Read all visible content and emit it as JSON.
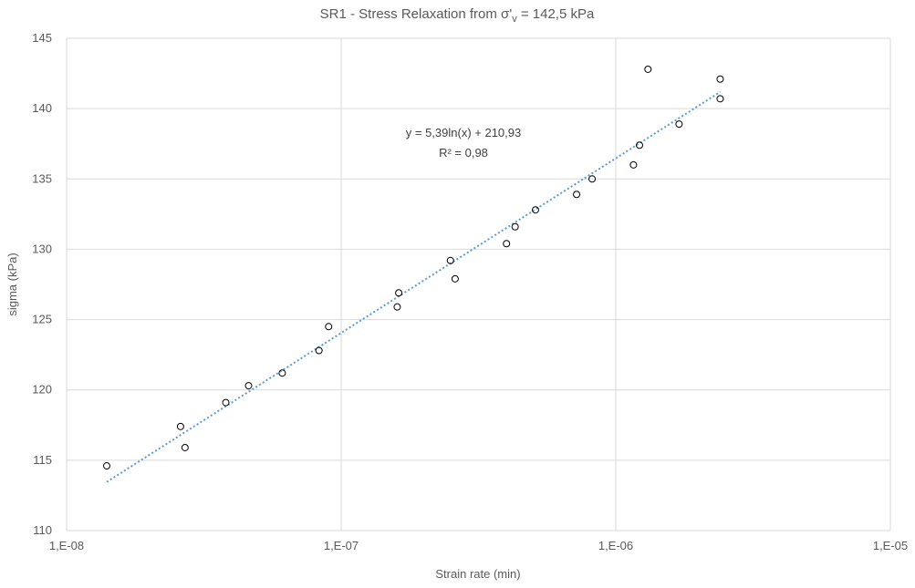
{
  "chart_data": {
    "type": "scatter",
    "title": "SR1 - Stress Relaxation from σ'",
    "title_sub": "v",
    "title_tail": " = 142,5 kPa",
    "xlabel": "Strain rate (min)",
    "ylabel": "sigma (kPa)",
    "x_scale": "log",
    "xlim": [
      1e-08,
      1e-05
    ],
    "ylim": [
      110,
      145
    ],
    "x_ticks": [
      {
        "value": 1e-08,
        "label": "1,E-08"
      },
      {
        "value": 1e-07,
        "label": "1,E-07"
      },
      {
        "value": 1e-06,
        "label": "1,E-06"
      },
      {
        "value": 1e-05,
        "label": "1,E-05"
      }
    ],
    "y_ticks": [
      {
        "value": 110,
        "label": "110"
      },
      {
        "value": 115,
        "label": "115"
      },
      {
        "value": 120,
        "label": "120"
      },
      {
        "value": 125,
        "label": "125"
      },
      {
        "value": 130,
        "label": "130"
      },
      {
        "value": 135,
        "label": "135"
      },
      {
        "value": 140,
        "label": "140"
      },
      {
        "value": 145,
        "label": "145"
      }
    ],
    "grid": true,
    "marker_color": "#000000",
    "trend_color": "#5b9bd5",
    "series": [
      {
        "points": [
          {
            "x": 1.4e-08,
            "y": 114.6
          },
          {
            "x": 2.6e-08,
            "y": 117.4
          },
          {
            "x": 2.7e-08,
            "y": 115.9
          },
          {
            "x": 3.8e-08,
            "y": 119.1
          },
          {
            "x": 4.6e-08,
            "y": 120.3
          },
          {
            "x": 6.1e-08,
            "y": 121.2
          },
          {
            "x": 8.3e-08,
            "y": 122.8
          },
          {
            "x": 9e-08,
            "y": 124.5
          },
          {
            "x": 1.6e-07,
            "y": 125.9
          },
          {
            "x": 1.62e-07,
            "y": 126.9
          },
          {
            "x": 2.5e-07,
            "y": 129.2
          },
          {
            "x": 2.6e-07,
            "y": 127.9
          },
          {
            "x": 4e-07,
            "y": 130.4
          },
          {
            "x": 4.3e-07,
            "y": 131.6
          },
          {
            "x": 5.1e-07,
            "y": 132.8
          },
          {
            "x": 7.2e-07,
            "y": 133.9
          },
          {
            "x": 8.2e-07,
            "y": 135.0
          },
          {
            "x": 1.16e-06,
            "y": 136.0
          },
          {
            "x": 1.22e-06,
            "y": 137.4
          },
          {
            "x": 1.31e-06,
            "y": 142.8
          },
          {
            "x": 1.7e-06,
            "y": 138.9
          },
          {
            "x": 2.4e-06,
            "y": 142.1
          },
          {
            "x": 2.4e-06,
            "y": 140.7
          }
        ]
      }
    ],
    "trendline": {
      "type": "logarithmic",
      "a": 5.39,
      "b": 210.93,
      "x_range": [
        1.4e-08,
        2.4e-06
      ],
      "equation": "y = 5,39ln(x) + 210,93",
      "r2": "R² = 0,98"
    }
  }
}
